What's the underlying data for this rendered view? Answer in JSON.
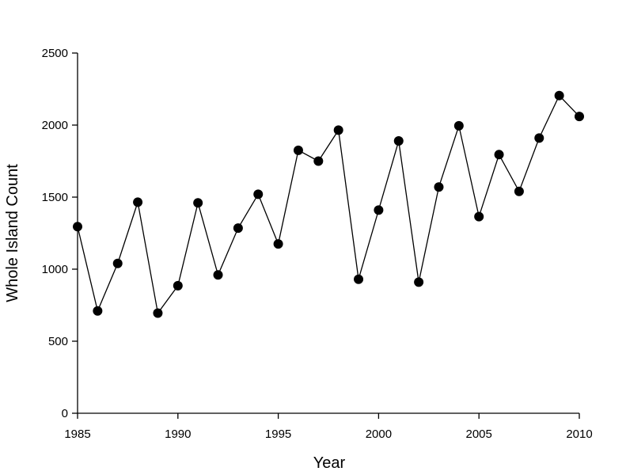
{
  "chart_data": {
    "type": "line",
    "title": "",
    "xlabel": "Year",
    "ylabel": "Whole Island Count",
    "xlim": [
      1985,
      2010
    ],
    "ylim": [
      0,
      2500
    ],
    "x_ticks": [
      1985,
      1990,
      1995,
      2000,
      2005,
      2010
    ],
    "y_ticks": [
      0,
      500,
      1000,
      1500,
      2000,
      2500
    ],
    "grid": false,
    "legend": "none",
    "colors": {
      "line": "#000000",
      "marker": "#000000"
    },
    "marker": "filled-circle",
    "series": [
      {
        "x": [
          1985,
          1986,
          1987,
          1988,
          1989,
          1990,
          1991,
          1992,
          1993,
          1994,
          1995,
          1996,
          1997,
          1998,
          1999,
          2000,
          2001,
          2002,
          2003,
          2004,
          2005,
          2006,
          2007,
          2008,
          2009,
          2010
        ],
        "y": [
          1295,
          710,
          1040,
          1465,
          695,
          885,
          1460,
          960,
          1285,
          1520,
          1175,
          1825,
          1750,
          1965,
          930,
          1410,
          1890,
          910,
          1570,
          1995,
          1365,
          1795,
          1540,
          1910,
          2205,
          2060
        ]
      }
    ]
  }
}
